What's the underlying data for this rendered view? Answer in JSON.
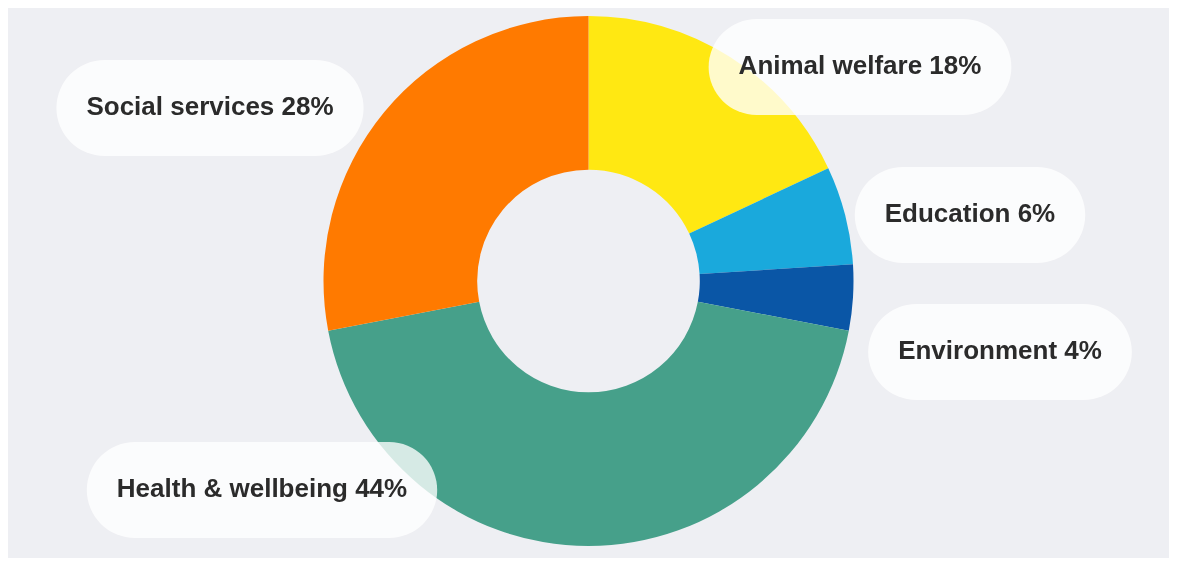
{
  "chart_data": {
    "type": "donut",
    "categories": [
      "Animal welfare",
      "Education",
      "Environment",
      "Health & wellbeing",
      "Social services"
    ],
    "values": [
      18,
      6,
      4,
      44,
      28
    ],
    "value_labels": [
      "18%",
      "6%",
      "4%",
      "44%",
      "28%"
    ],
    "colors": [
      "#ffe812",
      "#1aa9dc",
      "#0a56a6",
      "#46a08a",
      "#ff7a00"
    ],
    "legend": false
  }
}
